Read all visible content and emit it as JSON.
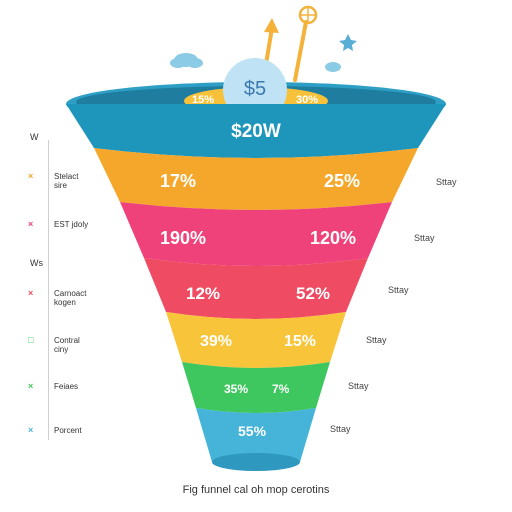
{
  "coin": {
    "label": "$5"
  },
  "rim": {
    "left_value": "15%",
    "right_value": "30%"
  },
  "top_band": {
    "label": "$20W"
  },
  "stages": [
    {
      "left": "17%",
      "right": "25%",
      "color": "#f5a72b",
      "side_label": "Sttay"
    },
    {
      "left": "190%",
      "right": "120%",
      "color": "#f0427a",
      "side_label": "Sttay"
    },
    {
      "left": "12%",
      "right": "52%",
      "color": "#ef4b62",
      "side_label": "Sttay"
    },
    {
      "left": "39%",
      "right": "15%",
      "color": "#f8c53a",
      "side_label": "Sttay"
    },
    {
      "left": "35%",
      "right": "7%",
      "color": "#3ec75e",
      "side_label": "Sttay"
    },
    {
      "left": "55%",
      "right": "",
      "color": "#46b4d8",
      "side_label": "Sttay"
    }
  ],
  "axis": {
    "tick_top": "W",
    "tick_mid": "Ws"
  },
  "legend": [
    {
      "mark": "×",
      "color": "#f5a72b",
      "text": "Stelact\nsire"
    },
    {
      "mark": "×",
      "color": "#f0427a",
      "text": "EST jdoly"
    },
    {
      "mark": "×",
      "color": "#ef4b62",
      "text": "Carnoact\nkogen"
    },
    {
      "mark": "□",
      "color": "#3ec75e",
      "text": "Contral\nciny"
    },
    {
      "mark": "×",
      "color": "#3ec75e",
      "text": "Feiaes"
    },
    {
      "mark": "×",
      "color": "#46b4d8",
      "text": "Porcent"
    }
  ],
  "caption": "Fig funnel cal oh mop cerotins",
  "colors": {
    "rim_outer": "#2e9fc4",
    "rim_inner": "#1f7da0",
    "top_band": "#1e96bb",
    "coin": "#bfe3f4",
    "coin_back": "#f7c23a",
    "arrow": "#f4b23a",
    "cloud": "#8ccbe6",
    "star": "#5aaed6"
  }
}
